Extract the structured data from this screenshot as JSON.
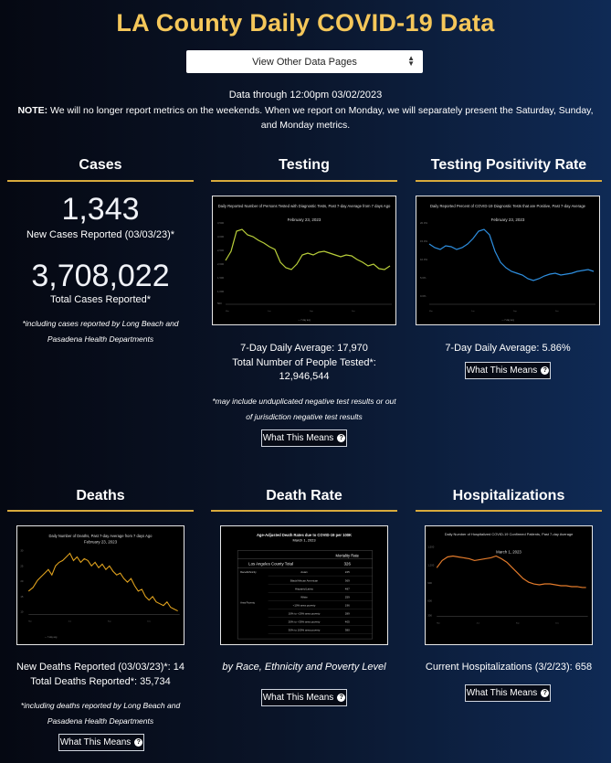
{
  "header": {
    "title": "LA County Daily COVID-19 Data",
    "select_value": "View Other Data Pages",
    "data_through": "Data through 12:00pm 03/02/2023",
    "note_label": "NOTE:",
    "note_text": " We will no longer report metrics on the weekends. When we report on Monday, we will separately present the Saturday, Sunday, and Monday metrics."
  },
  "cases": {
    "title": "Cases",
    "new_number": "1,343",
    "new_label": "New Cases Reported (03/03/23)*",
    "total_number": "3,708,022",
    "total_label": "Total Cases Reported*",
    "footnote": "*including cases reported by Long Beach and Pasadena Health Departments"
  },
  "testing": {
    "title": "Testing",
    "chart_title": "Daily Reported Number of Persons Tested with Diagnostic Tests, Past 7-day Average from 7 days Ago",
    "chart_date": "February 23, 2023",
    "avg_line": "7-Day Daily Average: 17,970",
    "total_line": "Total Number of People Tested*:",
    "total_value": "12,946,544",
    "footnote": "*may include unduplicated negative test results or out of jurisdiction negative test results",
    "button": "What This Means"
  },
  "positivity": {
    "title": "Testing Positivity Rate",
    "chart_title": "Daily Reported Percent of COVID-19 Diagnostic Tests that are Positive, Past 7-day Average",
    "chart_date": "February 23, 2023",
    "avg_line": "7-Day Daily Average: 5.86%",
    "button": "What This Means"
  },
  "deaths": {
    "title": "Deaths",
    "chart_title": "Daily Number of Deaths, Past 7-day Average from 7 days Ago",
    "chart_date": "February 23, 2023",
    "new_line": "New Deaths Reported (03/03/23)*: 14",
    "total_line": "Total Deaths Reported*: 35,734",
    "footnote": "*including deaths reported by Long Beach and Pasadena Health Departments",
    "button": "What This Means"
  },
  "death_rate": {
    "title": "Death Rate",
    "table_title": "Age-Adjusted Death Rates due to COVID-19 per 100K",
    "table_date": "March 1, 2023",
    "col_header": "Mortality Rate",
    "total_label": "Los Angeles County Total",
    "total_value": "326",
    "group_race": "Race/Ethnicity",
    "group_poverty": "Area Poverty",
    "rows": [
      {
        "label": "Asian",
        "value": "225"
      },
      {
        "label": "Black/African American",
        "value": "369"
      },
      {
        "label": "Hispanic/Latino",
        "value": "487"
      },
      {
        "label": "White",
        "value": "259"
      },
      {
        "label": "<10% area poverty",
        "value": "196"
      },
      {
        "label": "10% to <20% area poverty",
        "value": "289"
      },
      {
        "label": "20% to <30% area poverty",
        "value": "405"
      },
      {
        "label": "30% to 100% area poverty",
        "value": "380"
      }
    ],
    "caption": "by Race, Ethnicity and Poverty Level",
    "button": "What This Means"
  },
  "hospitalizations": {
    "title": "Hospitalizations",
    "chart_title": "Daily Number of Hospitalized COVID-19 Confirmed Patients, Past 7-day Average",
    "chart_date": "March 1, 2023",
    "current_line": "Current Hospitalizations (3/2/23): 658",
    "button": "What This Means"
  },
  "colors": {
    "accent": "#f5c75a",
    "rule": "#d8aa3c",
    "testing_line": "#b9cf3a",
    "positivity_line": "#2e8fe0",
    "deaths_line": "#e0a21e",
    "hosp_line": "#e37b2b"
  },
  "icons": {
    "question": "question-circle-icon",
    "caret": "sort-caret-icon"
  }
}
